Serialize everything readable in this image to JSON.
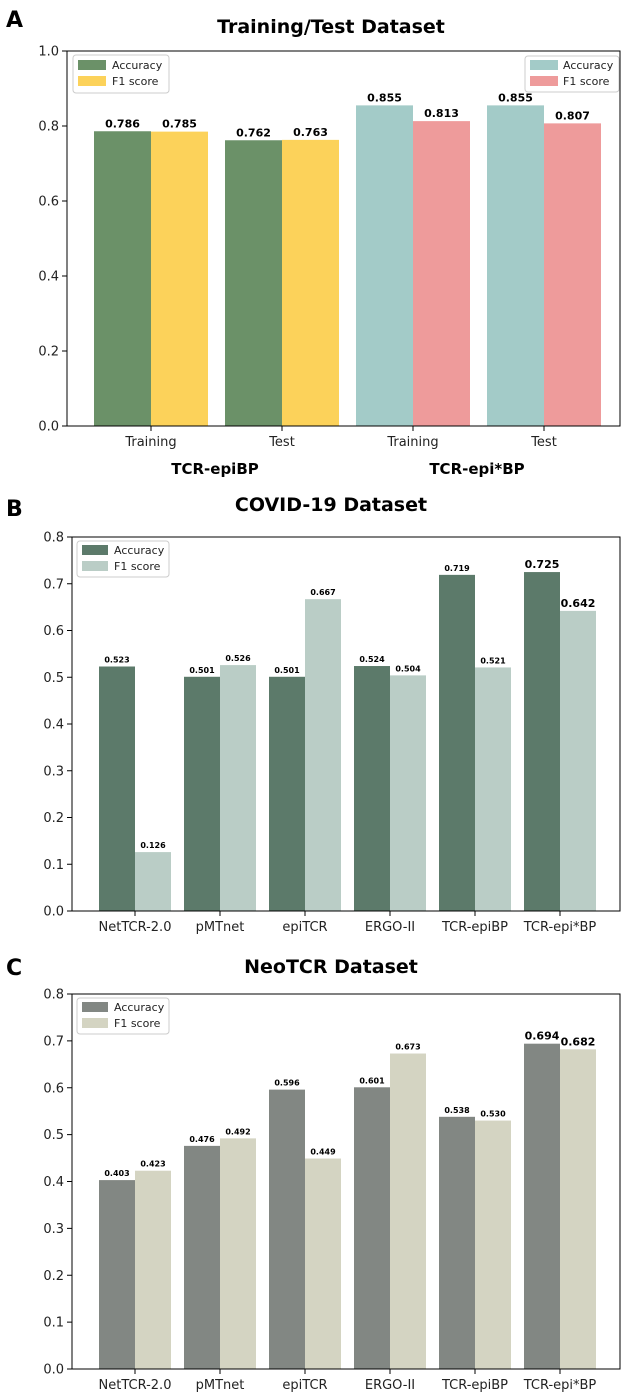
{
  "panels": [
    {
      "letter": "A"
    },
    {
      "letter": "B"
    },
    {
      "letter": "C"
    }
  ],
  "chart_data": [
    {
      "type": "bar",
      "title": "Training/Test Dataset",
      "categories": [
        "Training",
        "Test",
        "Training",
        "Test"
      ],
      "groups": [
        {
          "label": "TCR-epiBP",
          "categories": [
            0,
            1
          ]
        },
        {
          "label": "TCR-epi*BP",
          "categories": [
            2,
            3
          ]
        }
      ],
      "series": [
        {
          "name": "Accuracy",
          "values": [
            0.786,
            0.762,
            0.855,
            0.855
          ],
          "colors": [
            "#6b9168",
            "#6b9168",
            "#a3cbc8",
            "#a3cbc8"
          ]
        },
        {
          "name": "F1 score",
          "values": [
            0.785,
            0.763,
            0.813,
            0.807
          ],
          "colors": [
            "#fcd25a",
            "#fcd25a",
            "#ee9b9b",
            "#ee9b9b"
          ]
        }
      ],
      "value_labels": [
        [
          "0.786",
          "0.762",
          "0.855",
          "0.855"
        ],
        [
          "0.785",
          "0.763",
          "0.813",
          "0.807"
        ]
      ],
      "legends": [
        {
          "position": "top-left",
          "entries": [
            {
              "name": "Accuracy",
              "color": "#6b9168"
            },
            {
              "name": "F1 score",
              "color": "#fcd25a"
            }
          ]
        },
        {
          "position": "top-right",
          "entries": [
            {
              "name": "Accuracy",
              "color": "#a3cbc8"
            },
            {
              "name": "F1 score",
              "color": "#ee9b9b"
            }
          ]
        }
      ],
      "ylim": [
        0,
        1.0
      ],
      "yticks": [
        "0.0",
        "0.2",
        "0.4",
        "0.6",
        "0.8",
        "1.0"
      ],
      "xlabel": "",
      "ylabel": ""
    },
    {
      "type": "bar",
      "title": "COVID-19 Dataset",
      "categories": [
        "NetTCR-2.0",
        "pMTnet",
        "epiTCR",
        "ERGO-II",
        "TCR-epiBP",
        "TCR-epi*BP"
      ],
      "series": [
        {
          "name": "Accuracy",
          "values": [
            0.523,
            0.501,
            0.501,
            0.524,
            0.719,
            0.725
          ],
          "color": "#5c7a6a"
        },
        {
          "name": "F1 score",
          "values": [
            0.126,
            0.526,
            0.667,
            0.504,
            0.521,
            0.642
          ],
          "color": "#bacdc6"
        }
      ],
      "value_labels": [
        [
          "0.523",
          "0.501",
          "0.501",
          "0.524",
          "0.719",
          "0.725"
        ],
        [
          "0.126",
          "0.526",
          "0.667",
          "0.504",
          "0.521",
          "0.642"
        ]
      ],
      "highlight_category": 5,
      "highlight_color": "#cc5a3c",
      "legends": [
        {
          "position": "top-left",
          "entries": [
            {
              "name": "Accuracy",
              "color": "#5c7a6a"
            },
            {
              "name": "F1 score",
              "color": "#bacdc6"
            }
          ]
        }
      ],
      "ylim": [
        0,
        0.8
      ],
      "yticks": [
        "0.0",
        "0.1",
        "0.2",
        "0.3",
        "0.4",
        "0.5",
        "0.6",
        "0.7",
        "0.8"
      ],
      "xlabel": "",
      "ylabel": ""
    },
    {
      "type": "bar",
      "title": "NeoTCR Dataset",
      "categories": [
        "NetTCR-2.0",
        "pMTnet",
        "epiTCR",
        "ERGO-II",
        "TCR-epiBP",
        "TCR-epi*BP"
      ],
      "series": [
        {
          "name": "Accuracy",
          "values": [
            0.403,
            0.476,
            0.596,
            0.601,
            0.538,
            0.694
          ],
          "color": "#828783"
        },
        {
          "name": "F1 score",
          "values": [
            0.423,
            0.492,
            0.449,
            0.673,
            0.53,
            0.682
          ],
          "color": "#d4d4c2"
        }
      ],
      "value_labels": [
        [
          "0.403",
          "0.476",
          "0.596",
          "0.601",
          "0.538",
          "0.694"
        ],
        [
          "0.423",
          "0.492",
          "0.449",
          "0.673",
          "0.530",
          "0.682"
        ]
      ],
      "highlight_category": 5,
      "highlight_color": "#cc5a3c",
      "legends": [
        {
          "position": "top-left",
          "entries": [
            {
              "name": "Accuracy",
              "color": "#828783"
            },
            {
              "name": "F1 score",
              "color": "#d4d4c2"
            }
          ]
        }
      ],
      "ylim": [
        0,
        0.8
      ],
      "yticks": [
        "0.0",
        "0.1",
        "0.2",
        "0.3",
        "0.4",
        "0.5",
        "0.6",
        "0.7",
        "0.8"
      ],
      "xlabel": "",
      "ylabel": ""
    }
  ]
}
